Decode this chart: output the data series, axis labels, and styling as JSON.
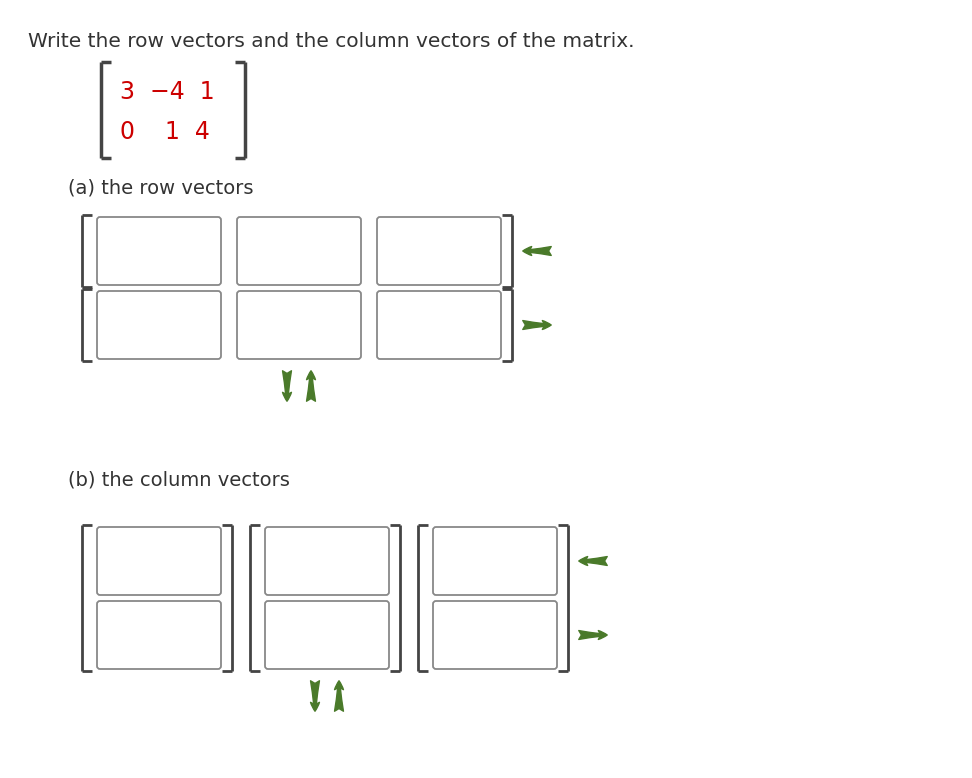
{
  "title": "Write the row vectors and the column vectors of the matrix.",
  "title_fontsize": 14.5,
  "title_color": "#333333",
  "bg_color": "#ffffff",
  "matrix_color": "#cc0000",
  "matrix_row1": "3  −4  1",
  "matrix_row2": "0    1  4",
  "label_a": "(a) the row vectors",
  "label_b": "(b) the column vectors",
  "label_fontsize": 14,
  "bracket_color": "#444444",
  "box_edge_color": "#888888",
  "box_face_color": "#ffffff",
  "arrow_color": "#4a7a2a"
}
